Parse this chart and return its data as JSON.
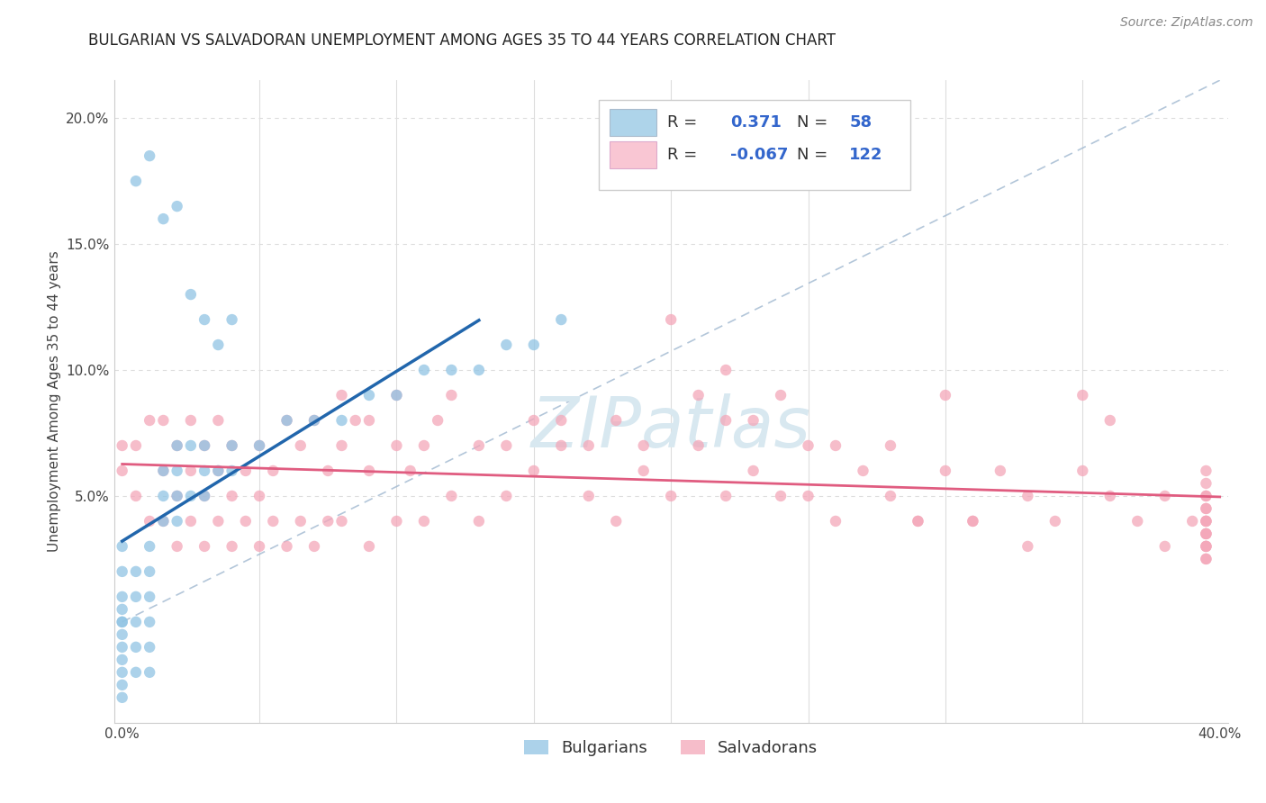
{
  "title": "BULGARIAN VS SALVADORAN UNEMPLOYMENT AMONG AGES 35 TO 44 YEARS CORRELATION CHART",
  "source": "Source: ZipAtlas.com",
  "ylabel": "Unemployment Among Ages 35 to 44 years",
  "xlim": [
    -0.003,
    0.403
  ],
  "ylim": [
    -0.04,
    0.215
  ],
  "xticks": [
    0.0,
    0.05,
    0.1,
    0.15,
    0.2,
    0.25,
    0.3,
    0.35,
    0.4
  ],
  "xticklabels": [
    "0.0%",
    "",
    "",
    "",
    "",
    "",
    "",
    "",
    "40.0%"
  ],
  "yticks": [
    0.0,
    0.05,
    0.1,
    0.15,
    0.2
  ],
  "yticklabels": [
    "",
    "5.0%",
    "10.0%",
    "15.0%",
    "20.0%"
  ],
  "bulgarian_R": 0.371,
  "bulgarian_N": 58,
  "salvadoran_R": -0.067,
  "salvadoran_N": 122,
  "blue_color": "#90c4e4",
  "pink_color": "#f4a7b9",
  "blue_line_color": "#2166ac",
  "pink_line_color": "#e05c80",
  "legend_blue_patch": "#aed4ea",
  "legend_pink_patch": "#f9c6d3",
  "grid_color": "#dddddd",
  "grid_dash_color": "#c8d8e8",
  "text_color": "#3366cc",
  "legend_text_color": "#3366cc",
  "legend_R_color": "#000000",
  "watermark_color": "#d8e8f0",
  "bulgarian_x": [
    0.0,
    0.0,
    0.0,
    0.0,
    0.0,
    0.0,
    0.0,
    0.0,
    0.0,
    0.0,
    0.0,
    0.0,
    0.005,
    0.005,
    0.005,
    0.005,
    0.005,
    0.01,
    0.01,
    0.01,
    0.01,
    0.01,
    0.01,
    0.015,
    0.015,
    0.015,
    0.02,
    0.02,
    0.02,
    0.02,
    0.025,
    0.025,
    0.03,
    0.03,
    0.03,
    0.035,
    0.04,
    0.04,
    0.05,
    0.06,
    0.07,
    0.08,
    0.09,
    0.1,
    0.11,
    0.12,
    0.13,
    0.14,
    0.15,
    0.16,
    0.005,
    0.01,
    0.015,
    0.02,
    0.025,
    0.03,
    0.035,
    0.04
  ],
  "bulgarian_y": [
    0.0,
    0.0,
    0.005,
    0.01,
    0.02,
    0.03,
    -0.005,
    -0.01,
    -0.015,
    -0.02,
    -0.025,
    -0.03,
    0.0,
    0.01,
    0.02,
    -0.01,
    -0.02,
    0.0,
    0.01,
    0.02,
    0.03,
    -0.01,
    -0.02,
    0.05,
    0.06,
    0.04,
    0.05,
    0.06,
    0.07,
    0.04,
    0.05,
    0.07,
    0.05,
    0.06,
    0.07,
    0.06,
    0.06,
    0.07,
    0.07,
    0.08,
    0.08,
    0.08,
    0.09,
    0.09,
    0.1,
    0.1,
    0.1,
    0.11,
    0.11,
    0.12,
    0.175,
    0.185,
    0.16,
    0.165,
    0.13,
    0.12,
    0.11,
    0.12
  ],
  "salvadoran_x": [
    0.0,
    0.0,
    0.005,
    0.005,
    0.01,
    0.01,
    0.015,
    0.015,
    0.015,
    0.02,
    0.02,
    0.02,
    0.025,
    0.025,
    0.025,
    0.03,
    0.03,
    0.03,
    0.035,
    0.035,
    0.035,
    0.04,
    0.04,
    0.04,
    0.045,
    0.045,
    0.05,
    0.05,
    0.05,
    0.055,
    0.055,
    0.06,
    0.06,
    0.065,
    0.065,
    0.07,
    0.07,
    0.075,
    0.075,
    0.08,
    0.08,
    0.085,
    0.09,
    0.09,
    0.1,
    0.1,
    0.105,
    0.11,
    0.115,
    0.12,
    0.13,
    0.14,
    0.15,
    0.16,
    0.17,
    0.18,
    0.19,
    0.2,
    0.21,
    0.22,
    0.23,
    0.24,
    0.25,
    0.26,
    0.27,
    0.28,
    0.29,
    0.3,
    0.31,
    0.32,
    0.33,
    0.34,
    0.35,
    0.36,
    0.37,
    0.38,
    0.39,
    0.395,
    0.2,
    0.22,
    0.24,
    0.3,
    0.35,
    0.36,
    0.08,
    0.09,
    0.1,
    0.11,
    0.12,
    0.13,
    0.15,
    0.17,
    0.19,
    0.22,
    0.25,
    0.28,
    0.14,
    0.16,
    0.18,
    0.21,
    0.23,
    0.26,
    0.29,
    0.31,
    0.33,
    0.38,
    0.395,
    0.395,
    0.395,
    0.395,
    0.395,
    0.395,
    0.395,
    0.395,
    0.395,
    0.395,
    0.395,
    0.395,
    0.395,
    0.395,
    0.395,
    0.395
  ],
  "salvadoran_y": [
    0.06,
    0.07,
    0.05,
    0.07,
    0.04,
    0.08,
    0.04,
    0.06,
    0.08,
    0.03,
    0.05,
    0.07,
    0.04,
    0.06,
    0.08,
    0.03,
    0.05,
    0.07,
    0.04,
    0.06,
    0.08,
    0.03,
    0.05,
    0.07,
    0.04,
    0.06,
    0.03,
    0.05,
    0.07,
    0.04,
    0.06,
    0.03,
    0.08,
    0.04,
    0.07,
    0.03,
    0.08,
    0.04,
    0.06,
    0.04,
    0.07,
    0.08,
    0.03,
    0.06,
    0.04,
    0.07,
    0.06,
    0.04,
    0.08,
    0.05,
    0.04,
    0.05,
    0.06,
    0.07,
    0.05,
    0.04,
    0.06,
    0.05,
    0.07,
    0.05,
    0.06,
    0.05,
    0.05,
    0.04,
    0.06,
    0.05,
    0.04,
    0.06,
    0.04,
    0.06,
    0.05,
    0.04,
    0.06,
    0.05,
    0.04,
    0.05,
    0.04,
    0.03,
    0.12,
    0.1,
    0.09,
    0.09,
    0.09,
    0.08,
    0.09,
    0.08,
    0.09,
    0.07,
    0.09,
    0.07,
    0.08,
    0.07,
    0.07,
    0.08,
    0.07,
    0.07,
    0.07,
    0.08,
    0.08,
    0.09,
    0.08,
    0.07,
    0.04,
    0.04,
    0.03,
    0.03,
    0.04,
    0.035,
    0.05,
    0.045,
    0.04,
    0.035,
    0.03,
    0.025,
    0.06,
    0.055,
    0.05,
    0.045,
    0.04,
    0.035,
    0.03,
    0.025
  ]
}
